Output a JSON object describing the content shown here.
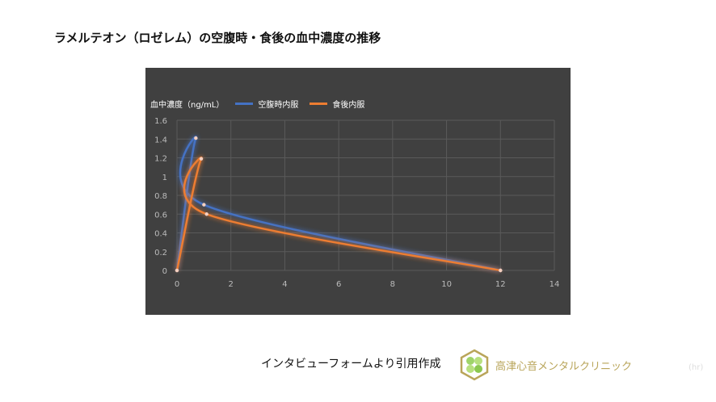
{
  "title": "ラメルテオン（ロゼレム）の空腹時・食後の血中濃度の推移",
  "source_note": "インタビューフォームより引用作成",
  "clinic_name": "高津心音メンタルクリニック",
  "chart_data": {
    "type": "scatter",
    "smoothed": true,
    "ylabel": "血中濃度（ng/mL）",
    "xlabel": "(hr)",
    "xlim": [
      0,
      14
    ],
    "ylim": [
      0,
      1.6
    ],
    "xticks": [
      0,
      2,
      4,
      6,
      8,
      10,
      12,
      14
    ],
    "yticks": [
      0,
      0.2,
      0.4,
      0.6,
      0.8,
      1,
      1.2,
      1.4,
      1.6
    ],
    "grid": true,
    "legend": "top",
    "background": "#404040",
    "series": [
      {
        "name": "空腹時内服",
        "color": "#4472C4",
        "x": [
          0,
          0.7,
          1.0,
          12
        ],
        "y": [
          0,
          1.41,
          0.7,
          0
        ]
      },
      {
        "name": "食後内服",
        "color": "#ED7D31",
        "x": [
          0,
          0.9,
          1.1,
          12
        ],
        "y": [
          0,
          1.19,
          0.6,
          0
        ]
      }
    ]
  }
}
